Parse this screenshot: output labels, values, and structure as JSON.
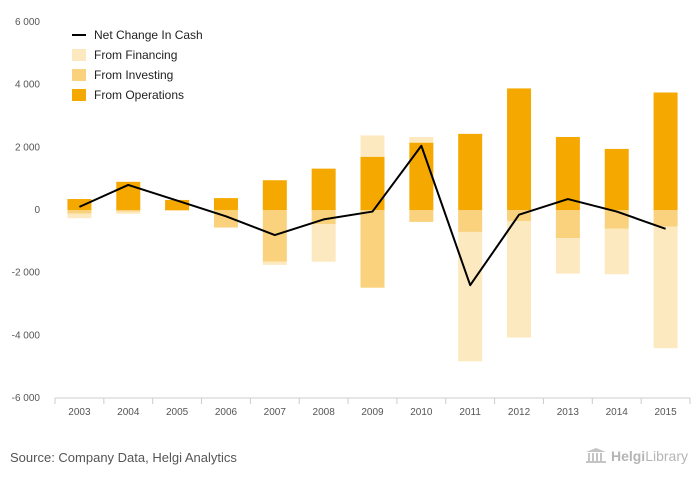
{
  "chart_data": {
    "type": "bar",
    "categories": [
      "2003",
      "2004",
      "2005",
      "2006",
      "2007",
      "2008",
      "2009",
      "2010",
      "2011",
      "2012",
      "2013",
      "2014",
      "2015"
    ],
    "series": [
      {
        "name": "From Operations",
        "kind": "stacked-bar",
        "color": "#f5a800",
        "values": [
          350,
          900,
          320,
          380,
          950,
          1320,
          1700,
          2150,
          2430,
          3880,
          2330,
          1950,
          3750
        ]
      },
      {
        "name": "From Investing",
        "kind": "stacked-bar",
        "color": "#fad27d",
        "values": [
          -120,
          -50,
          -20,
          -560,
          -1650,
          -450,
          -2480,
          -380,
          -700,
          -350,
          -900,
          -600,
          -530
        ]
      },
      {
        "name": "From Financing",
        "kind": "stacked-bar",
        "color": "#fde9bf",
        "values": [
          -140,
          -70,
          0,
          0,
          -100,
          -1200,
          680,
          180,
          -4130,
          -3720,
          -1130,
          -1450,
          -3880
        ]
      },
      {
        "name": "Net Change In Cash",
        "kind": "line",
        "color": "#000000",
        "values": [
          100,
          800,
          300,
          -200,
          -800,
          -300,
          -50,
          2050,
          -2400,
          -150,
          350,
          -50,
          -600
        ]
      }
    ],
    "ylim": [
      -6000,
      6000
    ],
    "yticks": [
      "6 000",
      "4 000",
      "2 000",
      "0",
      "-2 000",
      "-4 000",
      "-6 000"
    ],
    "ytick_values": [
      6000,
      4000,
      2000,
      0,
      -2000,
      -4000,
      -6000
    ],
    "grid": false,
    "legend_position": "top-left",
    "legend_order": [
      "Net Change In Cash",
      "From Financing",
      "From Investing",
      "From Operations"
    ]
  },
  "footer": {
    "source": "Source: Company Data, Helgi Analytics",
    "brand_bold": "Helgi",
    "brand_normal": "Library"
  }
}
